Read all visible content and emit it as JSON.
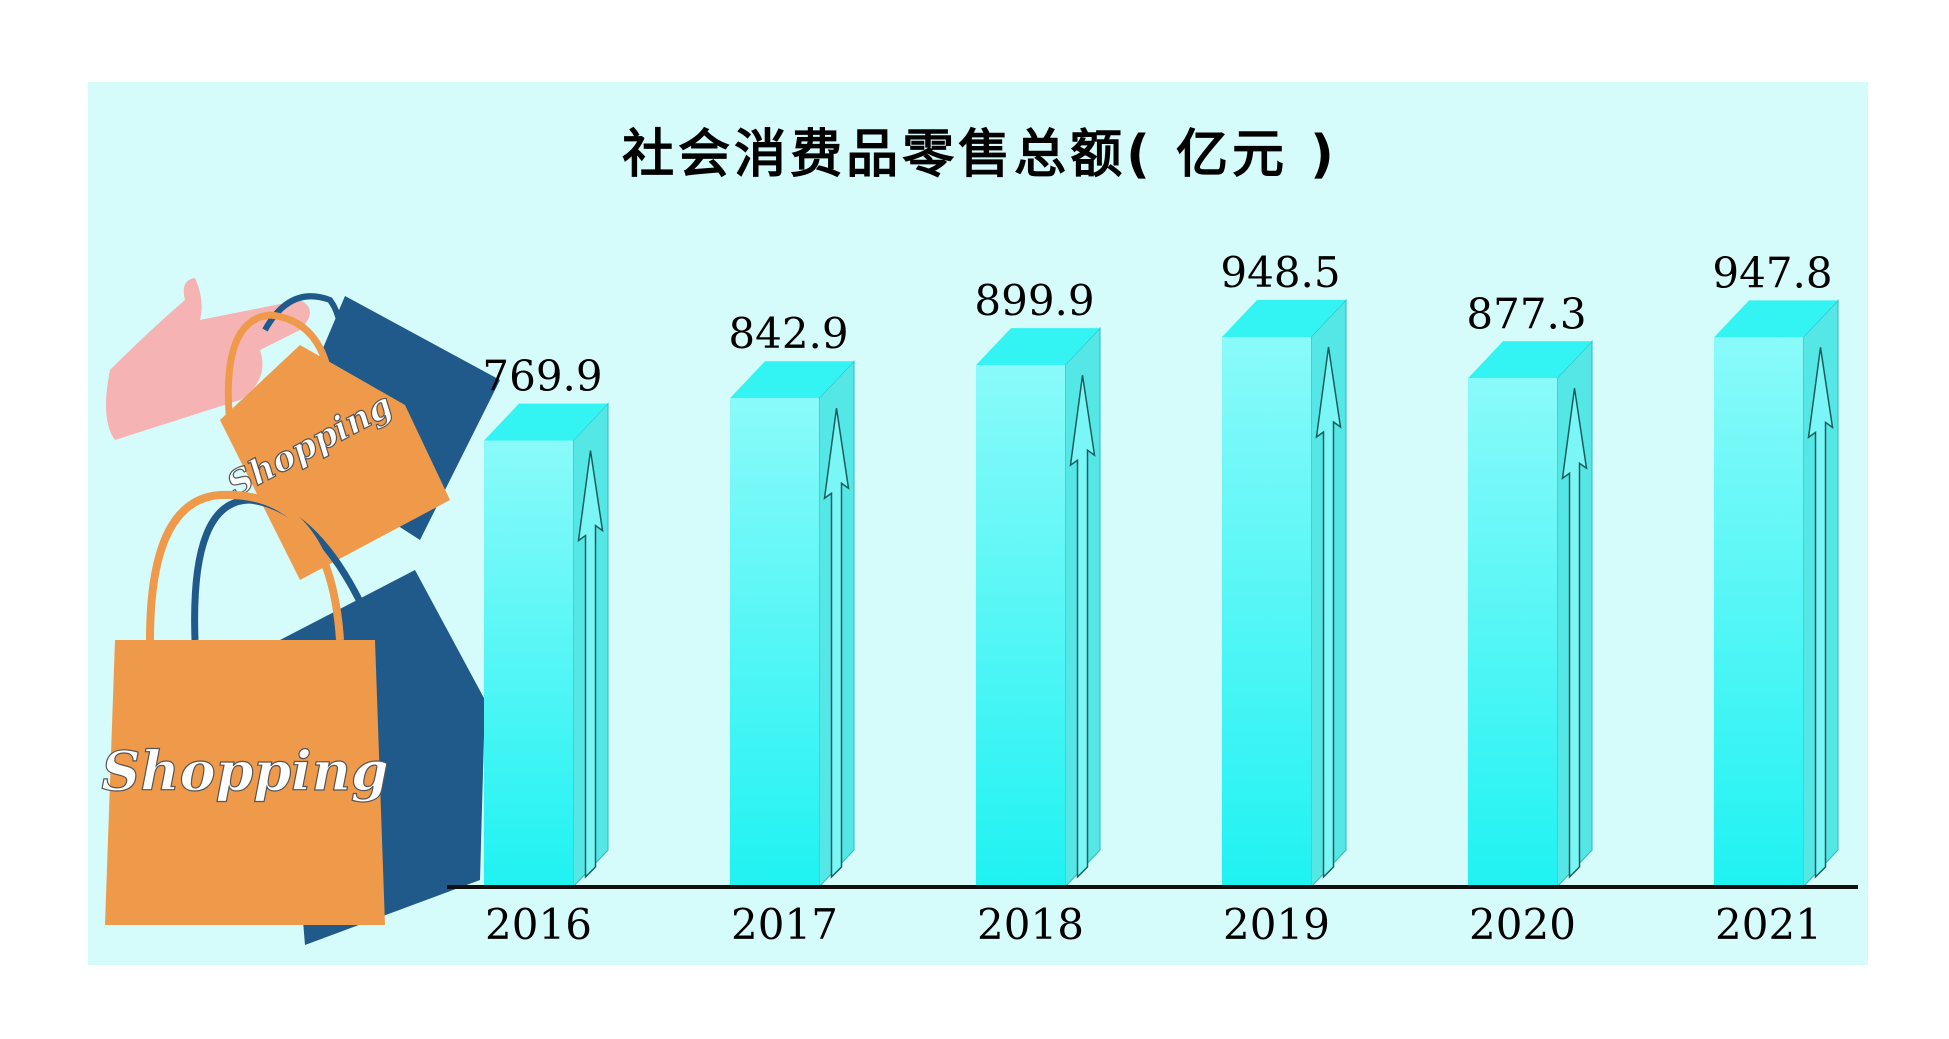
{
  "chart_data": {
    "type": "bar3d",
    "title": "社会消费品零售总额( 亿元 )",
    "categories": [
      "2016",
      "2017",
      "2018",
      "2019",
      "2020",
      "2021"
    ],
    "values": [
      769.9,
      842.9,
      899.9,
      948.5,
      877.3,
      947.8
    ],
    "color": "#33f3f3",
    "annotations": [
      "Shopping",
      "Shopping"
    ]
  }
}
